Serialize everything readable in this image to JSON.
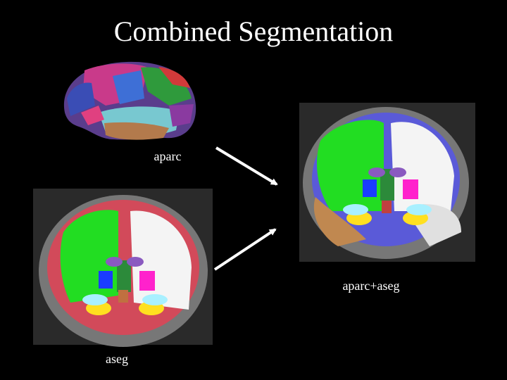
{
  "title": "Combined Segmentation",
  "labels": {
    "aparc": "aparc",
    "combined": "aparc+aseg",
    "aseg": "aseg"
  }
}
